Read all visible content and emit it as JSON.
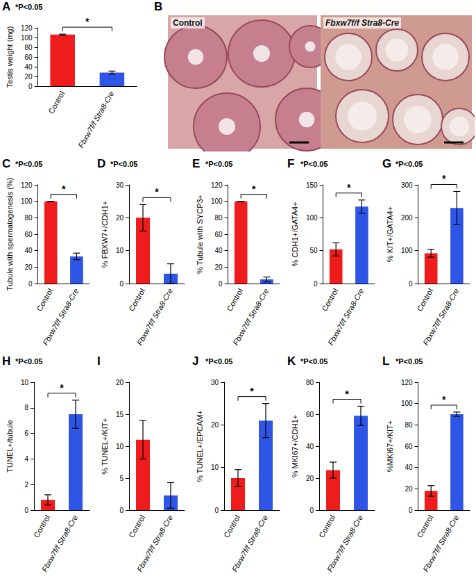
{
  "chart_data": [
    {
      "panel": "A",
      "type": "bar",
      "ylabel": "Testis weight (mg)",
      "categories": [
        "Control",
        "Fbxw7f/f Stra8-Cre"
      ],
      "values": [
        106,
        28
      ],
      "errors": [
        1,
        3
      ],
      "colors": [
        "#ee1c1c",
        "#2e55e6"
      ],
      "ylim": [
        0,
        120
      ],
      "yticks": [
        0,
        20,
        40,
        60,
        80,
        100,
        120
      ],
      "annotation": "*P<0.05",
      "bracket_label": "*"
    },
    {
      "panel": "C",
      "type": "bar",
      "ylabel": "Tubule with spermatogenesis (%)",
      "categories": [
        "Control",
        "Fbxw7f/f Stra8-Cre"
      ],
      "values": [
        100,
        33
      ],
      "errors": [
        0,
        4
      ],
      "colors": [
        "#ee1c1c",
        "#2e55e6"
      ],
      "ylim": [
        0,
        120
      ],
      "yticks": [
        0,
        20,
        40,
        60,
        80,
        100,
        120
      ],
      "annotation": "*P<0.05",
      "bracket_label": "*"
    },
    {
      "panel": "D",
      "type": "bar",
      "ylabel": "% FBXW7+/CDH1+",
      "categories": [
        "Control",
        "Fbxw7f/f Stra8-Cre"
      ],
      "values": [
        20,
        3
      ],
      "errors": [
        4,
        3
      ],
      "colors": [
        "#ee1c1c",
        "#2e55e6"
      ],
      "ylim": [
        0,
        30
      ],
      "yticks": [
        0,
        10,
        20,
        30
      ],
      "annotation": "*P<0.05",
      "bracket_label": "*"
    },
    {
      "panel": "E",
      "type": "bar",
      "ylabel": "% Tubule with SYCP3+",
      "categories": [
        "Control",
        "Fbxw7f/f Stra8-Cre"
      ],
      "values": [
        100,
        5
      ],
      "errors": [
        0,
        3
      ],
      "colors": [
        "#ee1c1c",
        "#2e55e6"
      ],
      "ylim": [
        0,
        120
      ],
      "yticks": [
        0,
        20,
        40,
        60,
        80,
        100,
        120
      ],
      "annotation": "*P<0.05",
      "bracket_label": "*"
    },
    {
      "panel": "F",
      "type": "bar",
      "ylabel": "% CDH1+/GATA4+",
      "categories": [
        "Control",
        "Fbxw7f/f Stra8-Cre"
      ],
      "values": [
        52,
        117
      ],
      "errors": [
        10,
        10
      ],
      "colors": [
        "#ee1c1c",
        "#2e55e6"
      ],
      "ylim": [
        0,
        150
      ],
      "yticks": [
        0,
        50,
        100,
        150
      ],
      "annotation": "*P<0.05",
      "bracket_label": "*"
    },
    {
      "panel": "G",
      "type": "bar",
      "ylabel": "% KIT+/GATA4+",
      "categories": [
        "Control",
        "Fbxw7f/f Stra8-Cre"
      ],
      "values": [
        92,
        230
      ],
      "errors": [
        12,
        50
      ],
      "colors": [
        "#ee1c1c",
        "#2e55e6"
      ],
      "ylim": [
        0,
        300
      ],
      "yticks": [
        0,
        100,
        200,
        300
      ],
      "annotation": "*P<0.05",
      "bracket_label": "*"
    },
    {
      "panel": "H",
      "type": "bar",
      "ylabel": "TUNEL+/tubule",
      "categories": [
        "Control",
        "Fbxw7f/f Stra8-Cre"
      ],
      "values": [
        0.8,
        7.5
      ],
      "errors": [
        0.4,
        1.1
      ],
      "colors": [
        "#ee1c1c",
        "#2e55e6"
      ],
      "ylim": [
        0,
        10
      ],
      "yticks": [
        0,
        2,
        4,
        6,
        8,
        10
      ],
      "annotation": "*P<0.05",
      "bracket_label": "*"
    },
    {
      "panel": "I",
      "type": "bar",
      "ylabel": "% TUNEL+/KIT+",
      "categories": [
        "Control",
        "Fbxw7f/f Stra8-Cre"
      ],
      "values": [
        11,
        2.3
      ],
      "errors": [
        3,
        2
      ],
      "colors": [
        "#ee1c1c",
        "#2e55e6"
      ],
      "ylim": [
        0,
        20
      ],
      "yticks": [
        0,
        5,
        10,
        15,
        20
      ]
    },
    {
      "panel": "J",
      "type": "bar",
      "ylabel": "% TUNEL+/EPCAM+",
      "categories": [
        "Control",
        "Fbxw7f/f Stra8-Cre"
      ],
      "values": [
        7.5,
        21
      ],
      "errors": [
        2,
        4
      ],
      "colors": [
        "#ee1c1c",
        "#2e55e6"
      ],
      "ylim": [
        0,
        30
      ],
      "yticks": [
        0,
        10,
        20,
        30
      ],
      "annotation": "*P<0.05",
      "bracket_label": "*"
    },
    {
      "panel": "K",
      "type": "bar",
      "ylabel": "% MKI67+/CDH1+",
      "categories": [
        "Control",
        "Fbxw7f/f Stra8-Cre"
      ],
      "values": [
        25,
        59
      ],
      "errors": [
        5,
        6
      ],
      "colors": [
        "#ee1c1c",
        "#2e55e6"
      ],
      "ylim": [
        0,
        80
      ],
      "yticks": [
        0,
        20,
        40,
        60,
        80
      ],
      "annotation": "*P<0.05",
      "bracket_label": "*"
    },
    {
      "panel": "L",
      "type": "bar",
      "ylabel": "%MKI67+/KIT+",
      "categories": [
        "Control",
        "Fbxw7f/f Stra8-Cre"
      ],
      "values": [
        18,
        90
      ],
      "errors": [
        5,
        2
      ],
      "colors": [
        "#ee1c1c",
        "#2e55e6"
      ],
      "ylim": [
        0,
        120
      ],
      "yticks": [
        0,
        20,
        40,
        60,
        80,
        100,
        120
      ],
      "annotation": "*P<0.05",
      "bracket_label": "*"
    }
  ],
  "image_panel": {
    "panel": "B",
    "labels": [
      "Control",
      "Fbxw7f/f Stra8-Cre"
    ]
  }
}
